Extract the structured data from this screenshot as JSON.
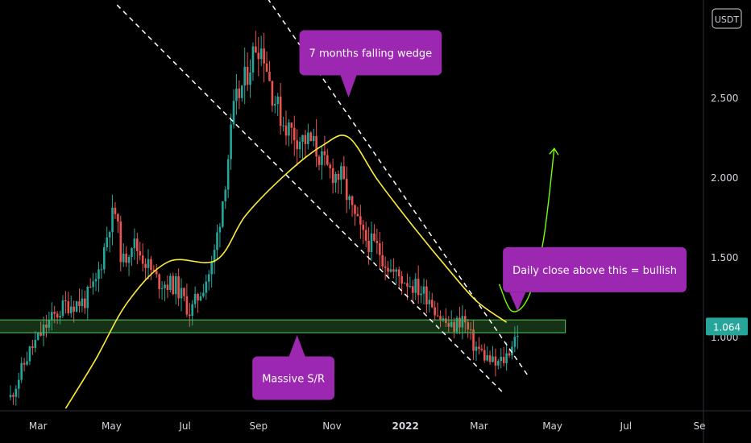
{
  "chart_data": {
    "type": "candlestick",
    "quote_currency": "USDT",
    "last_price": "1.064",
    "x_axis": {
      "ticks": [
        {
          "label": "Mar",
          "t": 0.75
        },
        {
          "label": "May",
          "t": 2.75
        },
        {
          "label": "Jul",
          "t": 4.75
        },
        {
          "label": "Sep",
          "t": 6.75
        },
        {
          "label": "Nov",
          "t": 8.75
        },
        {
          "label": "2022",
          "t": 10.75,
          "bold": true
        },
        {
          "label": "Mar",
          "t": 12.75
        },
        {
          "label": "May",
          "t": 14.75
        },
        {
          "label": "Jul",
          "t": 16.75
        },
        {
          "label": "Se",
          "t": 18.75
        }
      ]
    },
    "y_axis": {
      "ticks": [
        {
          "label": "2.500",
          "v": 2.5
        },
        {
          "label": "2.000",
          "v": 2.0
        },
        {
          "label": "1.500",
          "v": 1.5
        },
        {
          "label": "1.000",
          "v": 1.0
        }
      ]
    },
    "sr_zone": {
      "low": 1.025,
      "high": 1.105,
      "t_start": -0.4,
      "t_end": 15.1
    },
    "moving_average": [
      {
        "t": 1.5,
        "v": 0.55
      },
      {
        "t": 2.3,
        "v": 0.85
      },
      {
        "t": 3.2,
        "v": 1.22
      },
      {
        "t": 4.3,
        "v": 1.47
      },
      {
        "t": 5.6,
        "v": 1.48
      },
      {
        "t": 6.4,
        "v": 1.76
      },
      {
        "t": 7.5,
        "v": 2.02
      },
      {
        "t": 8.5,
        "v": 2.2
      },
      {
        "t": 9.2,
        "v": 2.25
      },
      {
        "t": 10.0,
        "v": 1.98
      },
      {
        "t": 11.0,
        "v": 1.68
      },
      {
        "t": 12.0,
        "v": 1.4
      },
      {
        "t": 12.7,
        "v": 1.22
      },
      {
        "t": 13.5,
        "v": 1.09
      }
    ],
    "trendlines": [
      {
        "t1": 2.9,
        "v1": 3.08,
        "t2": 13.4,
        "v2": 0.65,
        "style": "dashed"
      },
      {
        "t1": 7.0,
        "v1": 3.12,
        "t2": 14.1,
        "v2": 0.75,
        "style": "dashed"
      }
    ],
    "projection_arrow": {
      "points": [
        {
          "t": 13.3,
          "v": 1.33
        },
        {
          "t": 13.65,
          "v": 1.16
        },
        {
          "t": 14.1,
          "v": 1.25
        },
        {
          "t": 14.5,
          "v": 1.6
        },
        {
          "t": 14.8,
          "v": 2.18
        }
      ]
    },
    "annotations": [
      {
        "text": "7 months falling wedge",
        "t": 9.8,
        "v": 2.78,
        "pointer_t": 9.2,
        "pointer_v": 2.5
      },
      {
        "text": "Daily close above this = bullish",
        "t": 15.9,
        "v": 1.42,
        "pointer_t": 13.8,
        "pointer_v": 1.16
      },
      {
        "text": "Massive S/R",
        "t": 7.7,
        "v": 0.74,
        "pointer_t": 7.8,
        "pointer_v": 1.01
      }
    ]
  }
}
